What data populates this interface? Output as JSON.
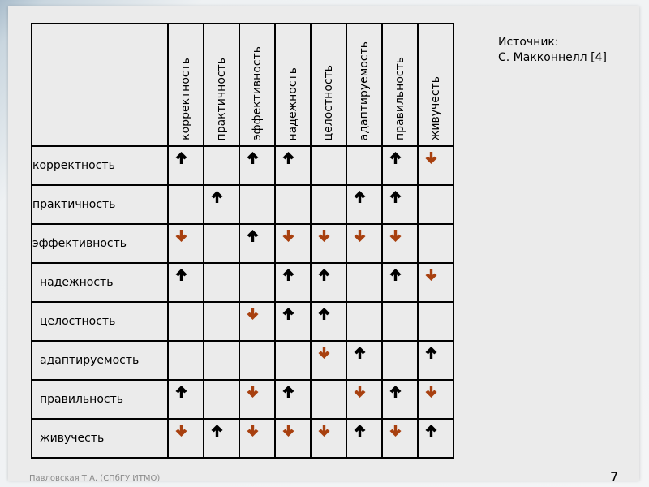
{
  "columns": [
    "корректность",
    "практичность",
    "эффективность",
    "надежность",
    "целостность",
    "адаптируемость",
    "правильность",
    "живучесть"
  ],
  "rows": [
    {
      "label": "корректность",
      "cells": [
        "up",
        "",
        "up",
        "up",
        "",
        "",
        "up",
        "down"
      ]
    },
    {
      "label": "практичность",
      "cells": [
        "",
        "up",
        "",
        "",
        "",
        "up",
        "up",
        ""
      ]
    },
    {
      "label": "эффективность",
      "cells": [
        "down",
        "",
        "up",
        "down",
        "down",
        "down",
        "down",
        ""
      ]
    },
    {
      "label": "надежность",
      "cells": [
        "up",
        "",
        "",
        "up",
        "up",
        "",
        "up",
        "down"
      ]
    },
    {
      "label": "целостность",
      "cells": [
        "",
        "",
        "down",
        "up",
        "up",
        "",
        "",
        ""
      ]
    },
    {
      "label": "адаптируемость",
      "cells": [
        "",
        "",
        "",
        "",
        "down",
        "up",
        "",
        "up"
      ]
    },
    {
      "label": "правильность",
      "cells": [
        "up",
        "",
        "down",
        "up",
        "",
        "down",
        "up",
        "down"
      ]
    },
    {
      "label": "живучесть",
      "cells": [
        "down",
        "up",
        "down",
        "down",
        "down",
        "up",
        "down",
        "up"
      ]
    }
  ],
  "source": {
    "line1": "Источник:",
    "line2": "С. Макконнелл [4]"
  },
  "footer": "Павловская Т.А. (СПбГУ ИТМО)",
  "page_number": "7",
  "colors": {
    "up": "#000000",
    "down": "#a8400f"
  }
}
